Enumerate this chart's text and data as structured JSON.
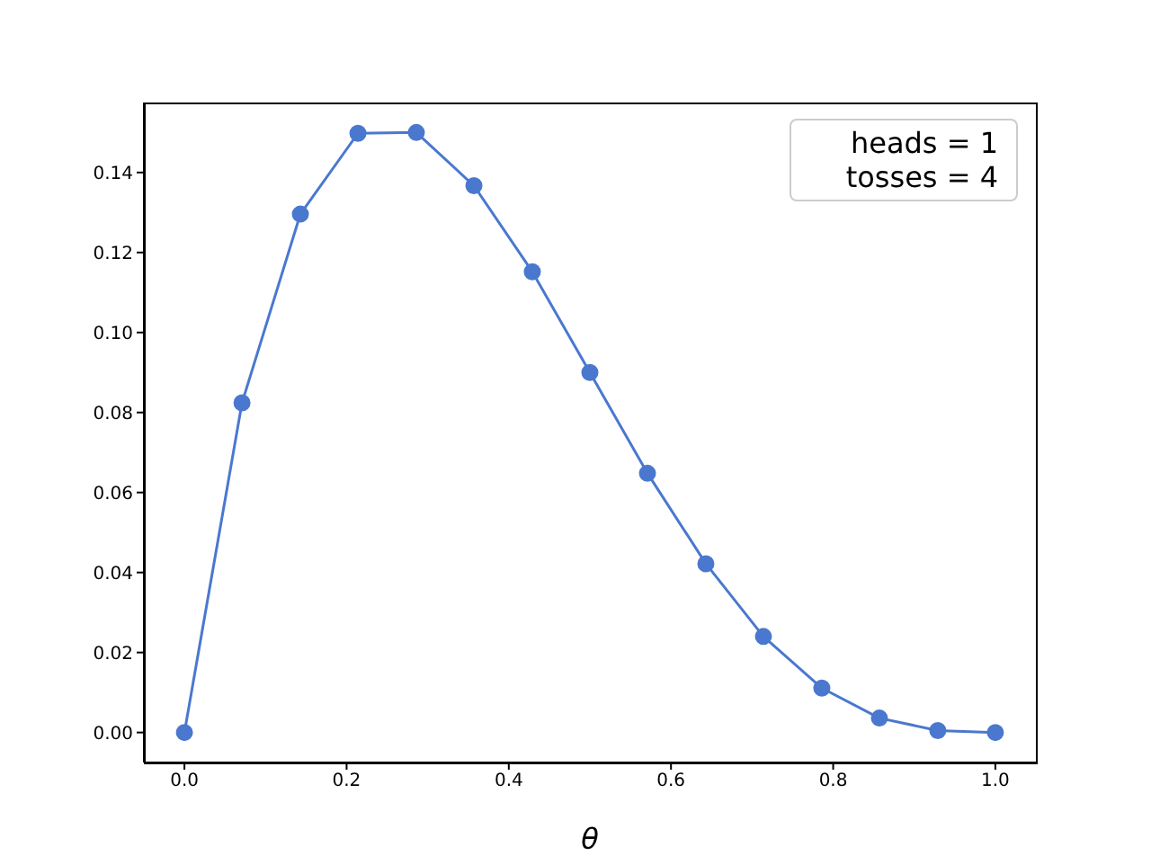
{
  "chart_data": {
    "type": "line",
    "xlabel": "θ",
    "x": [
      0,
      0.071,
      0.143,
      0.214,
      0.286,
      0.357,
      0.429,
      0.5,
      0.571,
      0.643,
      0.714,
      0.786,
      0.857,
      0.929,
      1
    ],
    "series": [
      {
        "color": "#4a78cf",
        "values": [
          0,
          0.0824,
          0.1296,
          0.1498,
          0.15,
          0.1367,
          0.1152,
          0.09,
          0.0648,
          0.0422,
          0.024,
          0.0111,
          0.0036,
          0.0005,
          0
        ]
      }
    ],
    "xlim": [
      -0.05,
      1.05
    ],
    "xticks": [
      {
        "value": 0,
        "label": "0.0"
      },
      {
        "value": 0.2,
        "label": "0.2"
      },
      {
        "value": 0.4,
        "label": "0.4"
      },
      {
        "value": 0.6,
        "label": "0.6"
      },
      {
        "value": 0.8,
        "label": "0.8"
      },
      {
        "value": 1,
        "label": "1.0"
      }
    ],
    "ylim": [
      -0.0075,
      0.1575
    ],
    "yticks": [
      {
        "value": 0,
        "label": "0.00"
      },
      {
        "value": 0.02,
        "label": "0.02"
      },
      {
        "value": 0.04,
        "label": "0.04"
      },
      {
        "value": 0.06,
        "label": "0.06"
      },
      {
        "value": 0.08,
        "label": "0.08"
      },
      {
        "value": 0.1,
        "label": "0.10"
      },
      {
        "value": 0.12,
        "label": "0.12"
      },
      {
        "value": 0.14,
        "label": "0.14"
      }
    ],
    "annotations": [
      "heads = 1",
      "tosses = 4"
    ],
    "marker": "circle",
    "line_style": "solid",
    "grid": false
  }
}
